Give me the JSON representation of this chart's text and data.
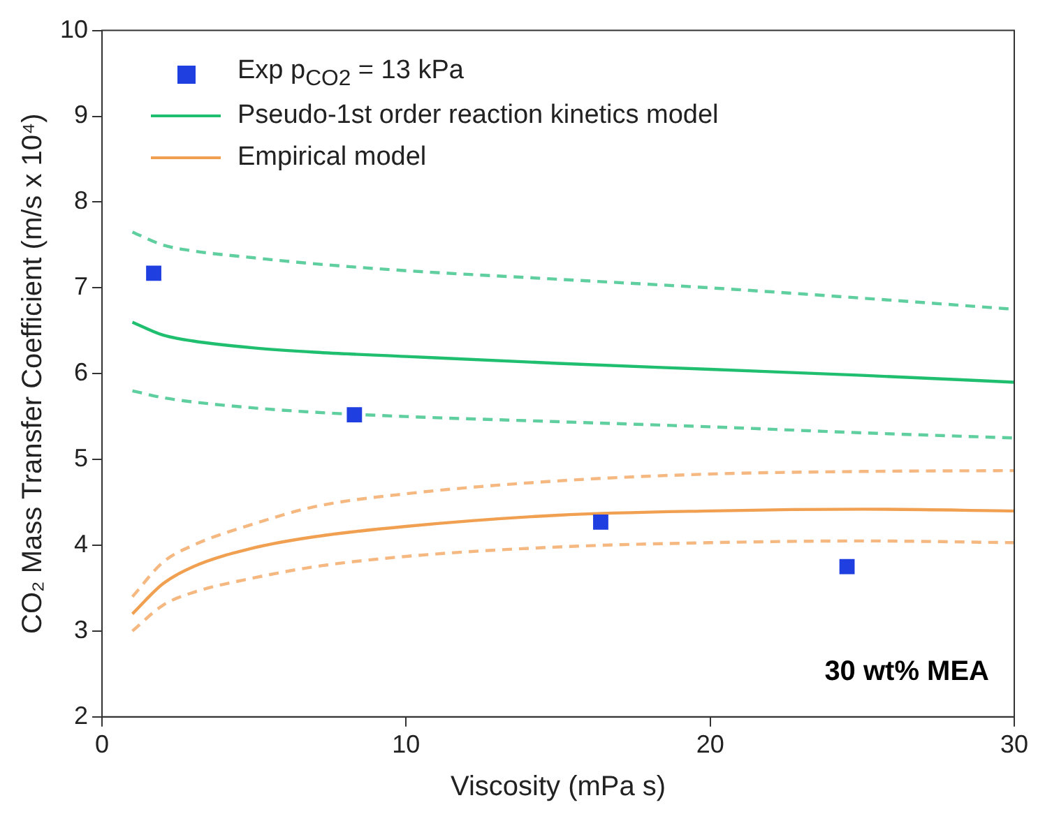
{
  "chart_data": {
    "type": "line",
    "xlabel": "Viscosity (mPa s)",
    "ylabel": "CO₂ Mass Transfer Coefficient (m/s x 10⁴)",
    "xlim": [
      0,
      30
    ],
    "ylim": [
      2,
      10
    ],
    "xticks": [
      0,
      10,
      20,
      30
    ],
    "yticks": [
      2,
      3,
      4,
      5,
      6,
      7,
      8,
      9,
      10
    ],
    "grid": false,
    "legend": "top left",
    "annotations": [
      "30 wt% MEA"
    ],
    "series": [
      {
        "name": "Exp p$_{CO2}$ = 13 kPa",
        "type": "scatter",
        "marker": "square",
        "color": "#1f3fe0",
        "x": [
          1.7,
          8.3,
          16.4,
          24.5
        ],
        "values": [
          7.17,
          5.52,
          4.27,
          3.75
        ]
      },
      {
        "name": "Pseudo-1st order reaction kinetics model",
        "type": "line",
        "line_style": "solid",
        "color": "#1fbf6f",
        "x": [
          1,
          2,
          3,
          5,
          7,
          10,
          15,
          20,
          25,
          30
        ],
        "values": [
          6.6,
          6.45,
          6.38,
          6.3,
          6.25,
          6.2,
          6.12,
          6.05,
          5.98,
          5.9
        ]
      },
      {
        "name": "Empirical model",
        "type": "line",
        "line_style": "solid",
        "color": "#f0a050",
        "x": [
          1,
          2,
          3,
          5,
          7,
          10,
          15,
          20,
          25,
          30
        ],
        "values": [
          3.2,
          3.55,
          3.75,
          3.97,
          4.1,
          4.22,
          4.35,
          4.4,
          4.42,
          4.4
        ]
      },
      {
        "type": "line",
        "line_style": "dashed",
        "color": "#5fcf9f",
        "x": [
          1,
          2,
          3,
          5,
          7,
          10,
          15,
          20,
          25,
          30
        ],
        "values": [
          7.65,
          7.5,
          7.43,
          7.35,
          7.28,
          7.2,
          7.1,
          7.0,
          6.88,
          6.75
        ]
      },
      {
        "type": "line",
        "line_style": "dashed",
        "color": "#5fcf9f",
        "x": [
          1,
          2,
          3,
          5,
          7,
          10,
          15,
          20,
          25,
          30
        ],
        "values": [
          5.8,
          5.72,
          5.67,
          5.6,
          5.55,
          5.5,
          5.44,
          5.38,
          5.31,
          5.25
        ]
      },
      {
        "type": "line",
        "line_style": "dashed",
        "color": "#f5b880",
        "x": [
          1,
          2,
          3,
          5,
          7,
          10,
          15,
          20,
          25,
          30
        ],
        "values": [
          3.4,
          3.8,
          4.0,
          4.25,
          4.45,
          4.6,
          4.75,
          4.83,
          4.86,
          4.87
        ]
      },
      {
        "type": "line",
        "line_style": "dashed",
        "color": "#f5b880",
        "x": [
          1,
          2,
          3,
          5,
          7,
          10,
          15,
          20,
          25,
          30
        ],
        "values": [
          3.0,
          3.3,
          3.45,
          3.62,
          3.75,
          3.87,
          3.98,
          4.03,
          4.05,
          4.03
        ]
      }
    ]
  }
}
